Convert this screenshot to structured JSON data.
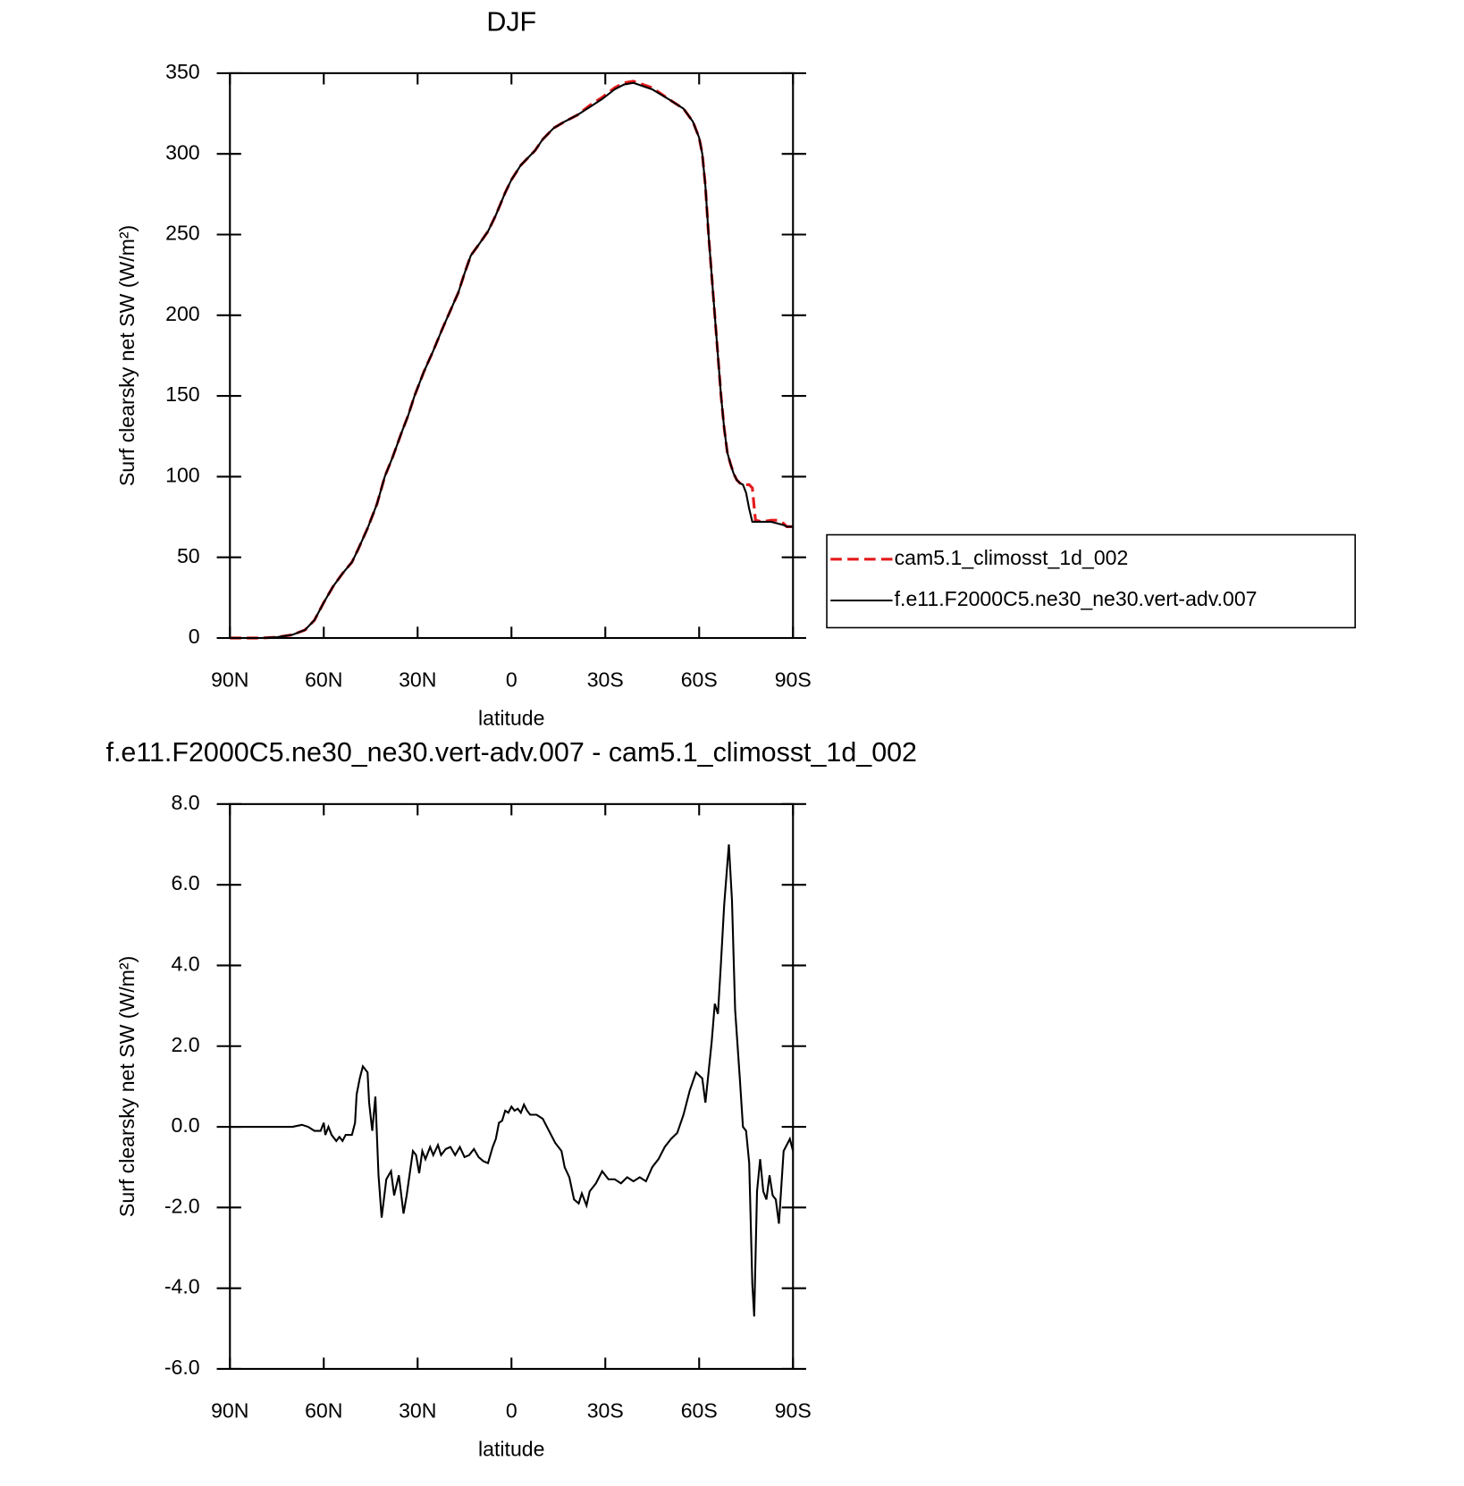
{
  "chart_data": [
    {
      "type": "line",
      "title": "DJF",
      "x_label": "latitude",
      "y_label": "Surf clearsky net SW (W/m²)",
      "x": [
        90,
        80,
        75,
        70,
        66,
        63,
        60,
        57,
        54,
        51,
        49,
        46,
        43,
        40.5,
        38,
        35,
        33,
        31,
        28,
        25,
        22,
        19.5,
        17,
        15,
        13,
        10,
        7.5,
        5,
        2,
        0,
        -3,
        -7.5,
        -10,
        -13.5,
        -17,
        -21,
        -25,
        -29,
        -33,
        -36,
        -39,
        -45,
        -51,
        -55,
        -58,
        -60,
        -61,
        -62,
        -63,
        -64,
        -65,
        -66,
        -67,
        -68,
        -69,
        -70,
        -71,
        -72,
        -73,
        -74,
        -75,
        -76,
        -77,
        -78,
        -80,
        -83,
        -85,
        -87,
        -88,
        -90
      ],
      "series": [
        {
          "name": "cam5.1_climosst_1d_002",
          "color": "#e41a1c",
          "dashed": true,
          "values": [
            0,
            0,
            0.5,
            2,
            5,
            11,
            22,
            32,
            40,
            47,
            55,
            68,
            83,
            100,
            112,
            128,
            138,
            150,
            165,
            178,
            192,
            203,
            214,
            226,
            237,
            245,
            252,
            262,
            276,
            284,
            293,
            302,
            309,
            316,
            320,
            324,
            330,
            335,
            341,
            344,
            345,
            341,
            333,
            328,
            320,
            310,
            300,
            280,
            250,
            225,
            200,
            175,
            150,
            130,
            115,
            108,
            102,
            98,
            96,
            95,
            95,
            95,
            93,
            73,
            72,
            73,
            73,
            71,
            69,
            69
          ]
        },
        {
          "name": "f.e11.F2000C5.ne30_ne30.vert-adv.007",
          "color": "#000000",
          "dashed": false,
          "values": [
            0,
            0,
            0.5,
            2,
            5,
            11,
            22,
            32,
            40,
            47,
            55,
            68,
            83,
            100,
            112,
            128,
            138,
            150,
            165,
            178,
            192,
            203,
            214,
            226,
            237,
            245,
            252,
            262,
            276,
            284,
            293,
            302,
            309,
            316,
            320,
            324,
            329,
            334,
            340,
            343,
            344,
            340,
            333,
            328,
            320,
            310,
            300,
            280,
            250,
            225,
            200,
            175,
            150,
            130,
            115,
            108,
            102,
            98,
            96,
            95,
            90,
            80,
            72,
            72,
            72,
            72,
            71,
            70,
            69,
            69
          ]
        }
      ],
      "xlim": [
        90,
        -90
      ],
      "xticks": [
        {
          "value": 90,
          "label": "90N"
        },
        {
          "value": 60,
          "label": "60N"
        },
        {
          "value": 30,
          "label": "30N"
        },
        0,
        {
          "value": -30,
          "label": "30S"
        },
        {
          "value": -60,
          "label": "60S"
        },
        {
          "value": -90,
          "label": "90S"
        }
      ],
      "ylim": [
        0,
        350
      ],
      "yticks": [
        0,
        50,
        100,
        150,
        200,
        250,
        300,
        350
      ],
      "legend": "right"
    },
    {
      "type": "line",
      "title": "f.e11.F2000C5.ne30_ne30.vert-adv.007 - cam5.1_climosst_1d_002",
      "x_label": "latitude",
      "y_label": "Surf clearsky net SW (W/m²)",
      "x": [
        90,
        70,
        67,
        65,
        63,
        61,
        60,
        59.5,
        58.5,
        57.5,
        56,
        55,
        54,
        53,
        51,
        50,
        49.5,
        48.5,
        47.5,
        46,
        45.5,
        44.5,
        43.5,
        42.5,
        41.5,
        40,
        38.5,
        37.5,
        36,
        34.5,
        33.5,
        31.5,
        30.5,
        29.5,
        28.5,
        27.5,
        26,
        25,
        23.5,
        22.5,
        21,
        19.5,
        18,
        16.5,
        15,
        13.5,
        12,
        10.5,
        9,
        7.5,
        6,
        5,
        4,
        3,
        2,
        1,
        0,
        -1,
        -2,
        -3,
        -4,
        -5,
        -6,
        -8,
        -10,
        -12,
        -14,
        -16,
        -17,
        -18.5,
        -20,
        -21.5,
        -22.5,
        -24,
        -25,
        -27,
        -29,
        -31,
        -33,
        -35,
        -37,
        -39,
        -41,
        -43,
        -45,
        -47,
        -49,
        -51,
        -53,
        -55,
        -57,
        -59,
        -61,
        -62,
        -64,
        -65,
        -66,
        -67,
        -68,
        -69.5,
        -70.5,
        -71.5,
        -73,
        -74,
        -75,
        -76,
        -77,
        -77.6,
        -78.5,
        -79.5,
        -80.5,
        -81.5,
        -82.5,
        -83.5,
        -84.5,
        -85.5,
        -87,
        -88,
        -89,
        -90
      ],
      "values": [
        0,
        0,
        0.05,
        0,
        -0.1,
        -0.1,
        0.1,
        -0.2,
        0,
        -0.2,
        -0.35,
        -0.25,
        -0.35,
        -0.2,
        -0.2,
        0.1,
        0.8,
        1.2,
        1.5,
        1.35,
        0.6,
        -0.1,
        0.75,
        -1.2,
        -2.25,
        -1.3,
        -1.1,
        -1.7,
        -1.2,
        -2.15,
        -1.7,
        -0.6,
        -0.7,
        -1.15,
        -0.6,
        -0.8,
        -0.5,
        -0.7,
        -0.45,
        -0.7,
        -0.55,
        -0.5,
        -0.7,
        -0.5,
        -0.75,
        -0.7,
        -0.55,
        -0.75,
        -0.85,
        -0.9,
        -0.5,
        -0.3,
        0.1,
        0.15,
        0.4,
        0.35,
        0.5,
        0.4,
        0.45,
        0.35,
        0.55,
        0.4,
        0.3,
        0.3,
        0.2,
        -0.1,
        -0.4,
        -0.6,
        -1.0,
        -1.25,
        -1.8,
        -1.9,
        -1.65,
        -1.95,
        -1.6,
        -1.4,
        -1.1,
        -1.3,
        -1.3,
        -1.4,
        -1.25,
        -1.35,
        -1.25,
        -1.35,
        -1.0,
        -0.8,
        -0.5,
        -0.3,
        -0.15,
        0.3,
        0.9,
        1.35,
        1.2,
        0.6,
        2.1,
        3.05,
        2.8,
        4.1,
        5.5,
        7.0,
        5.6,
        2.9,
        1.2,
        0,
        -0.1,
        -0.9,
        -3.9,
        -4.7,
        -1.6,
        -0.8,
        -1.6,
        -1.8,
        -1.2,
        -1.7,
        -1.8,
        -2.4,
        -0.6,
        -0.45,
        -0.3,
        -0.6
      ],
      "color": "#000000",
      "xlim": [
        90,
        -90
      ],
      "xticks": [
        {
          "value": 90,
          "label": "90N"
        },
        {
          "value": 60,
          "label": "60N"
        },
        {
          "value": 30,
          "label": "30N"
        },
        0,
        {
          "value": -30,
          "label": "30S"
        },
        {
          "value": -60,
          "label": "60S"
        },
        {
          "value": -90,
          "label": "90S"
        }
      ],
      "ylim": [
        -6,
        8
      ],
      "yticks": [
        {
          "value": -6,
          "label": "-6.0"
        },
        {
          "value": -4,
          "label": "-4.0"
        },
        {
          "value": -2,
          "label": "-2.0"
        },
        {
          "value": 0,
          "label": "0.0"
        },
        {
          "value": 2,
          "label": "2.0"
        },
        {
          "value": 4,
          "label": "4.0"
        },
        {
          "value": 6,
          "label": "6.0"
        },
        {
          "value": 8,
          "label": "8.0"
        }
      ]
    }
  ]
}
